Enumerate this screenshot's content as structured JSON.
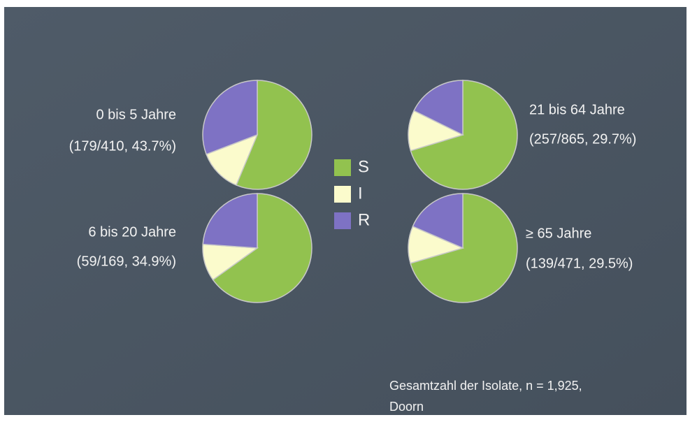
{
  "chart_data": [
    {
      "type": "pie",
      "title": "0 bis 5 Jahre",
      "subtitle": "(179/410, 43.7%)",
      "categories": [
        "S",
        "I",
        "R"
      ],
      "colors": [
        "#92c24f",
        "#fbfbcc",
        "#7e72c4"
      ],
      "values": [
        56.3,
        12.9,
        30.8
      ]
    },
    {
      "type": "pie",
      "title": "21 bis 64 Jahre",
      "subtitle": "(257/865, 29.7%)",
      "categories": [
        "S",
        "I",
        "R"
      ],
      "colors": [
        "#92c24f",
        "#fbfbcc",
        "#7e72c4"
      ],
      "values": [
        70.3,
        12,
        17.7
      ]
    },
    {
      "type": "pie",
      "title": "6 bis 20 Jahre",
      "subtitle": "(59/169, 34.9%)",
      "categories": [
        "S",
        "I",
        "R"
      ],
      "colors": [
        "#92c24f",
        "#fbfbcc",
        "#7e72c4"
      ],
      "values": [
        65.1,
        11,
        23.9
      ]
    },
    {
      "type": "pie",
      "title": "≥ 65 Jahre",
      "subtitle": "(139/471, 29.5%)",
      "categories": [
        "S",
        "I",
        "R"
      ],
      "colors": [
        "#92c24f",
        "#fbfbcc",
        "#7e72c4"
      ],
      "values": [
        70.5,
        11,
        18.5
      ]
    }
  ],
  "note": {
    "lines": [
      "Gesamtzahl der Isolate, n = 1,925,",
      "Doorn"
    ]
  }
}
